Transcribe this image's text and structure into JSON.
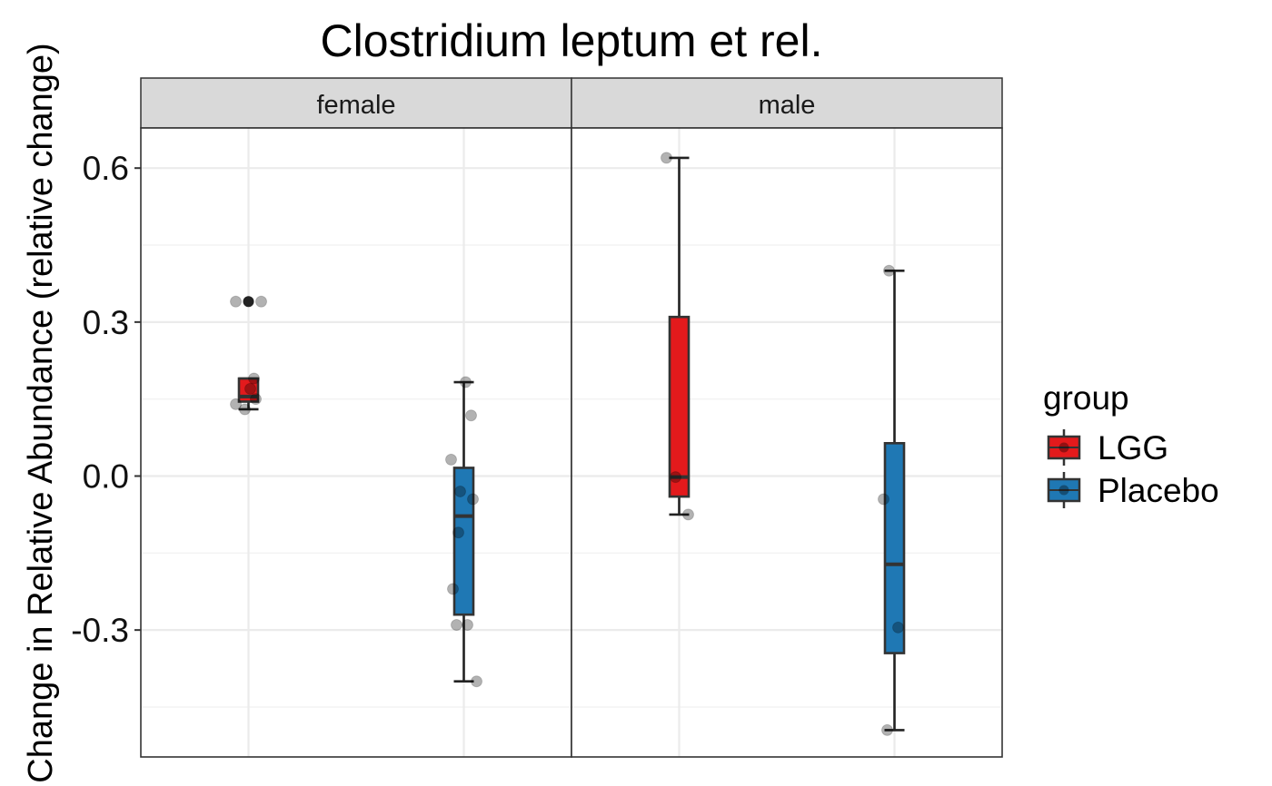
{
  "chart_data": {
    "type": "box",
    "title": "Clostridium leptum et rel.",
    "ylabel": "Change in Relative Abundance (relative change)",
    "xlabel": "",
    "ylim": [
      -0.55,
      0.68
    ],
    "yticks": [
      "0.6",
      "0.3",
      "0.0",
      "-0.3"
    ],
    "facets": [
      "female",
      "male"
    ],
    "legend": {
      "title": "group",
      "position": "right",
      "entries": [
        {
          "name": "LGG",
          "color": "#e31a1c"
        },
        {
          "name": "Placebo",
          "color": "#1f78b4"
        }
      ]
    },
    "grid": true,
    "panels": [
      {
        "facet": "female",
        "boxes": [
          {
            "group": "LGG",
            "whisker_low": 0.13,
            "q1": 0.145,
            "median": 0.155,
            "q3": 0.19,
            "whisker_high": 0.19,
            "outliers": [
              0.34
            ]
          },
          {
            "group": "Placebo",
            "whisker_low": -0.4,
            "q1": -0.27,
            "median": -0.078,
            "q3": 0.016,
            "whisker_high": 0.183,
            "outliers": []
          }
        ],
        "points": [
          {
            "group": "LGG",
            "values": [
              0.34,
              0.34,
              0.19,
              0.17,
              0.15,
              0.14,
              0.13
            ]
          },
          {
            "group": "Placebo",
            "values": [
              0.183,
              0.118,
              0.032,
              -0.03,
              -0.045,
              -0.11,
              -0.22,
              -0.29,
              -0.29,
              -0.4
            ]
          }
        ]
      },
      {
        "facet": "male",
        "boxes": [
          {
            "group": "LGG",
            "whisker_low": -0.075,
            "q1": -0.04,
            "median": -0.002,
            "q3": 0.31,
            "whisker_high": 0.62,
            "outliers": []
          },
          {
            "group": "Placebo",
            "whisker_low": -0.495,
            "q1": -0.345,
            "median": -0.172,
            "q3": 0.064,
            "whisker_high": 0.4,
            "outliers": []
          }
        ],
        "points": [
          {
            "group": "LGG",
            "values": [
              0.62,
              -0.002,
              -0.075
            ]
          },
          {
            "group": "Placebo",
            "values": [
              0.4,
              -0.045,
              -0.295,
              -0.495
            ]
          }
        ]
      }
    ]
  }
}
